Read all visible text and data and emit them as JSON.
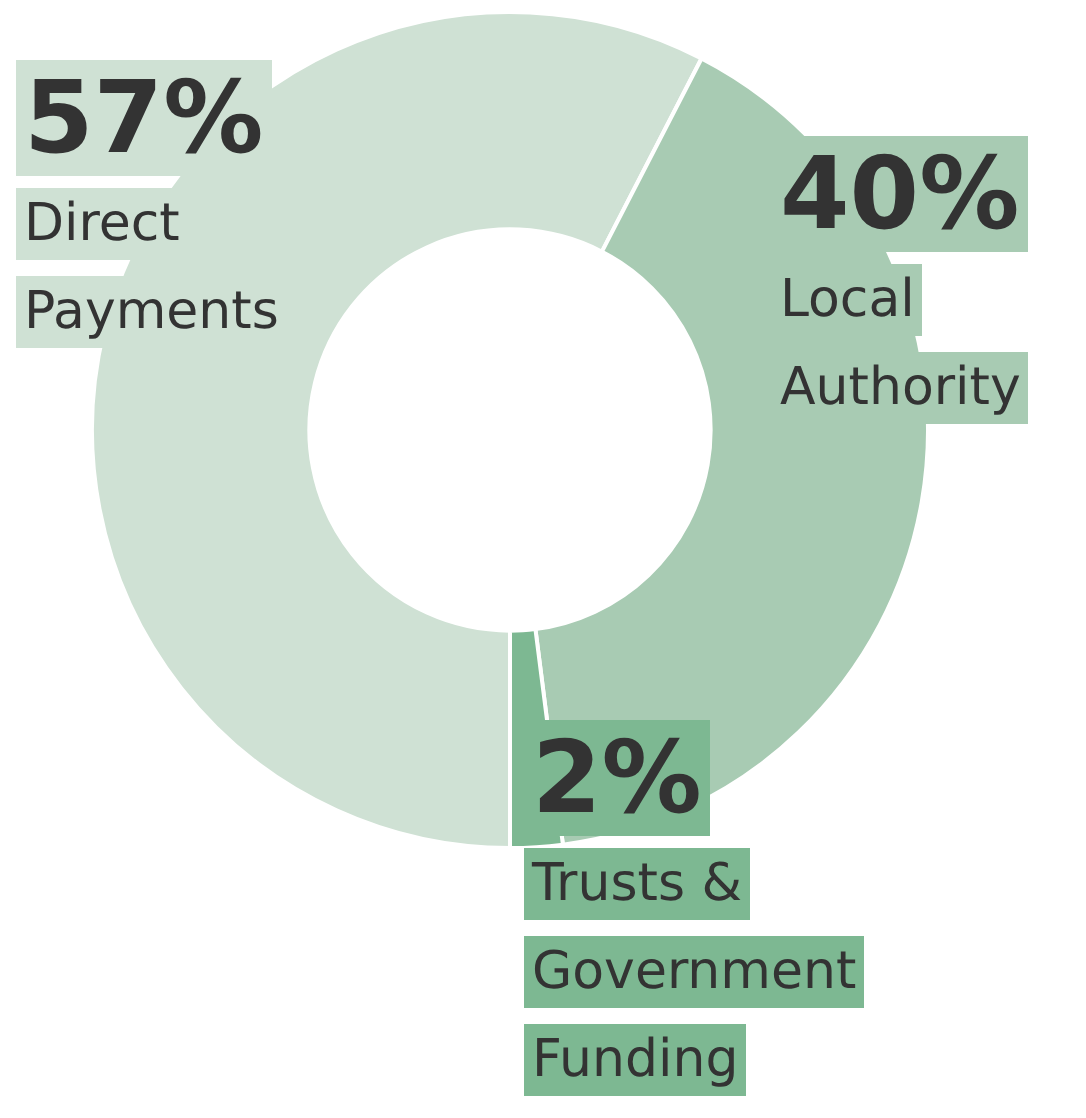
{
  "chart_data": {
    "type": "donut",
    "categories": [
      "Direct Payments",
      "Local Authority",
      "Trusts & Government Funding"
    ],
    "values": [
      57,
      40,
      2
    ],
    "colors": [
      "#cfe1d4",
      "#a8cbb3",
      "#7db892"
    ],
    "value_labels": [
      "57%",
      "40%",
      "2%"
    ],
    "legend": "bottom right"
  }
}
